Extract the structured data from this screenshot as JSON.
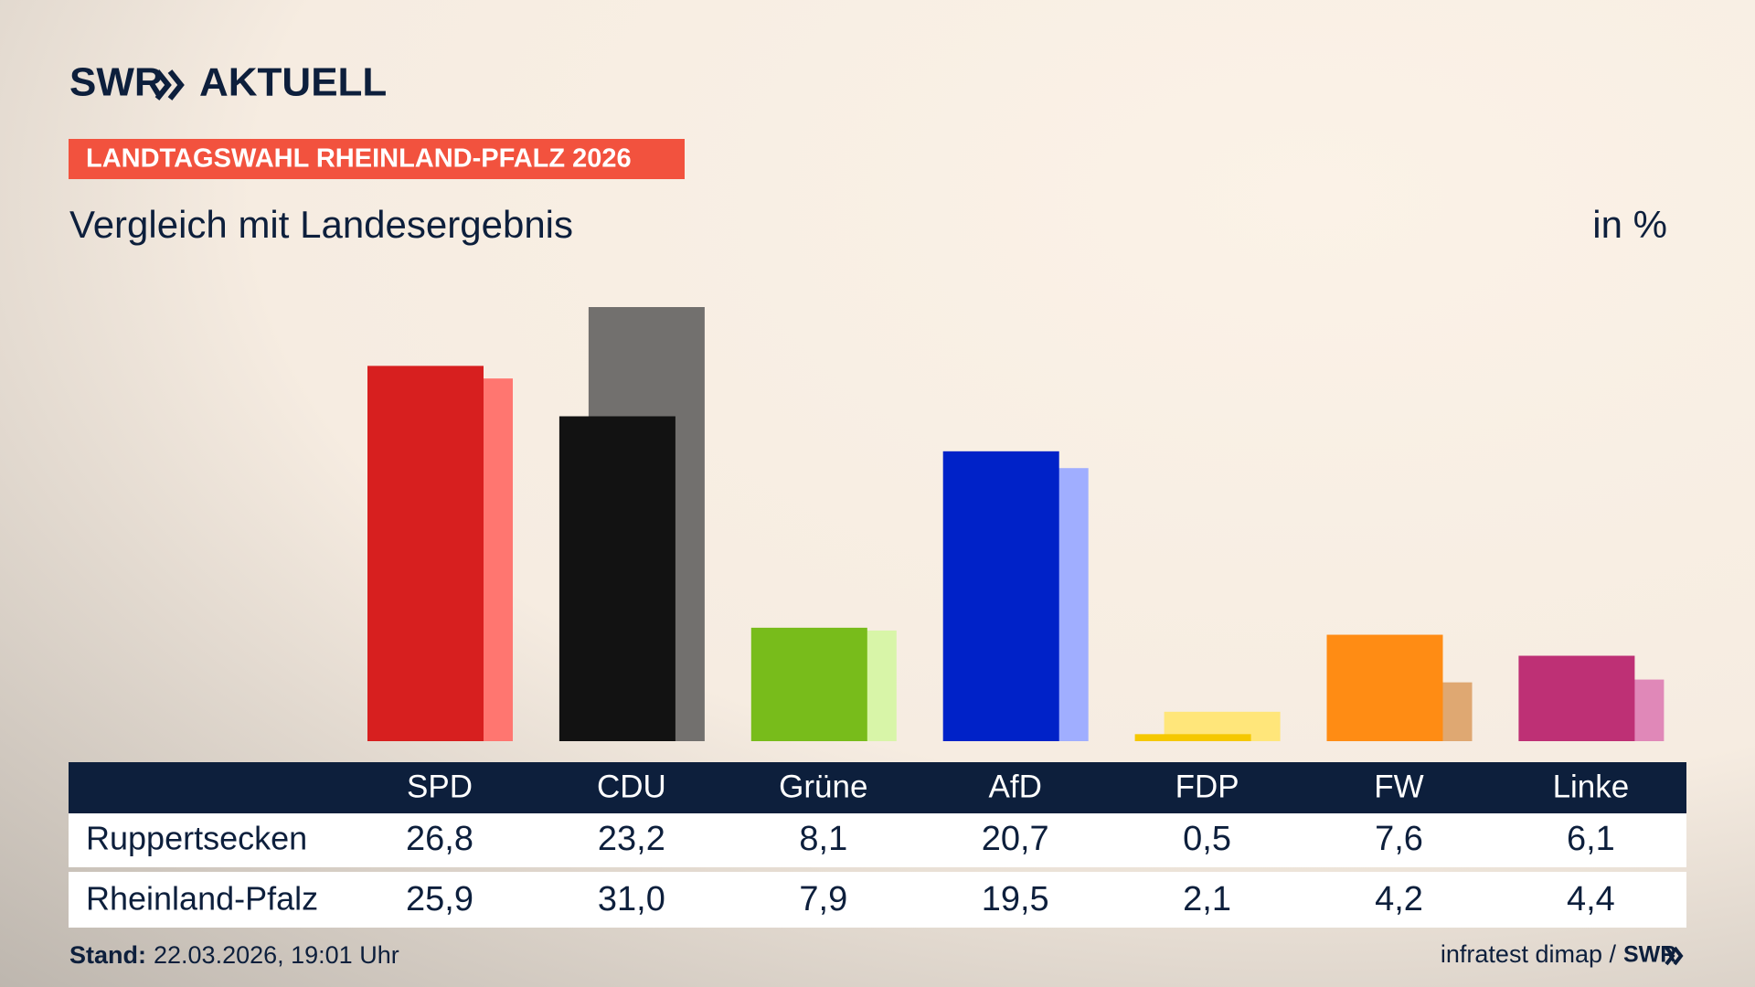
{
  "logo": {
    "brand": "SWR",
    "name": "AKTUELL"
  },
  "chart_data": {
    "type": "bar",
    "tag": "LANDTAGSWAHL RHEINLAND-PFALZ 2026",
    "title": "Vergleich mit Landesergebnis",
    "unit": "in %",
    "categories": [
      "SPD",
      "CDU",
      "Grüne",
      "AfD",
      "FDP",
      "FW",
      "Linke"
    ],
    "series": [
      {
        "name": "Ruppertsecken",
        "values": [
          26.8,
          23.2,
          8.1,
          20.7,
          0.5,
          7.6,
          6.1
        ],
        "value_labels": [
          "26,8",
          "23,2",
          "8,1",
          "20,7",
          "0,5",
          "7,6",
          "6,1"
        ],
        "colors": [
          "#d71f1f",
          "#121212",
          "#78bc1b",
          "#0022c8",
          "#f5c800",
          "#ff8c14",
          "#be3075"
        ]
      },
      {
        "name": "Rheinland-Pfalz",
        "values": [
          25.9,
          31.0,
          7.9,
          19.5,
          2.1,
          4.2,
          4.4
        ],
        "value_labels": [
          "25,9",
          "31,0",
          "7,9",
          "19,5",
          "2,1",
          "4,2",
          "4,4"
        ],
        "colors": [
          "#ff7670",
          "#72706e",
          "#d8f5a8",
          "#a0aeff",
          "#ffe67a",
          "#dfa872",
          "#e088b8"
        ]
      }
    ]
  },
  "footer": {
    "label": "Stand:",
    "timestamp": "22.03.2026, 19:01 Uhr",
    "source": "infratest dimap /",
    "brand": "SWR"
  }
}
